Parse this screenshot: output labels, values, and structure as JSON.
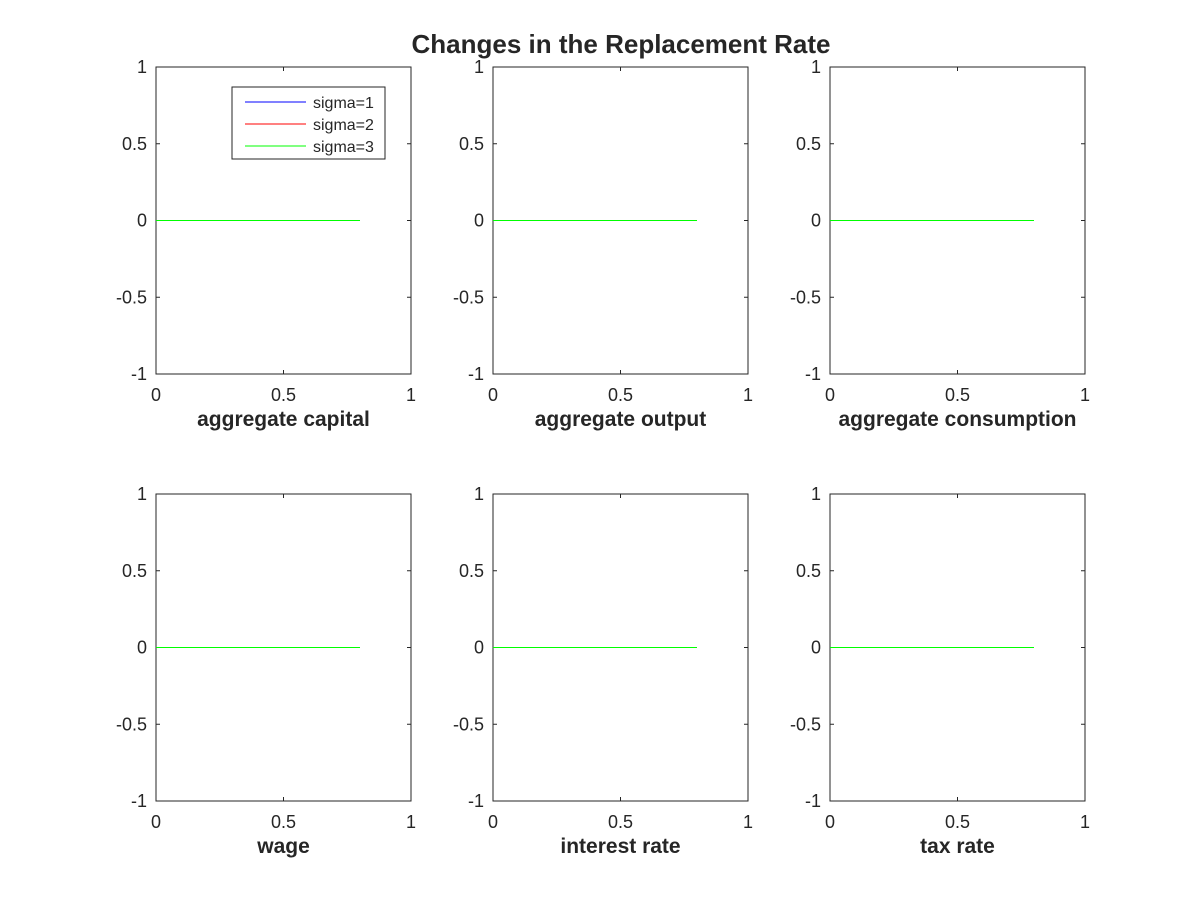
{
  "chart_data": {
    "title": "Changes in the Replacement Rate",
    "type": "line",
    "grid": false,
    "legend_placement": "top-right",
    "series": [
      {
        "name": "sigma=1",
        "color": "#0000ff"
      },
      {
        "name": "sigma=2",
        "color": "#ff0000"
      },
      {
        "name": "sigma=3",
        "color": "#00ff00"
      }
    ],
    "subplots": [
      {
        "xlabel": "aggregate capital",
        "xlim": [
          0,
          1
        ],
        "ylim": [
          -1,
          1
        ],
        "xticks": [
          "0",
          "0.5",
          "1"
        ],
        "yticks": [
          "1",
          "0.5",
          "0",
          "-0.5",
          "-1"
        ],
        "x": [
          0,
          0.8
        ],
        "values": [
          [
            0,
            0
          ],
          [
            0,
            0
          ],
          [
            0,
            0
          ]
        ],
        "legend": true
      },
      {
        "xlabel": "aggregate output",
        "xlim": [
          0,
          1
        ],
        "ylim": [
          -1,
          1
        ],
        "xticks": [
          "0",
          "0.5",
          "1"
        ],
        "yticks": [
          "1",
          "0.5",
          "0",
          "-0.5",
          "-1"
        ],
        "x": [
          0,
          0.8
        ],
        "values": [
          [
            0,
            0
          ],
          [
            0,
            0
          ],
          [
            0,
            0
          ]
        ],
        "legend": false
      },
      {
        "xlabel": "aggregate consumption",
        "xlim": [
          0,
          1
        ],
        "ylim": [
          -1,
          1
        ],
        "xticks": [
          "0",
          "0.5",
          "1"
        ],
        "yticks": [
          "1",
          "0.5",
          "0",
          "-0.5",
          "-1"
        ],
        "x": [
          0,
          0.8
        ],
        "values": [
          [
            0,
            0
          ],
          [
            0,
            0
          ],
          [
            0,
            0
          ]
        ],
        "legend": false
      },
      {
        "xlabel": "wage",
        "xlim": [
          0,
          1
        ],
        "ylim": [
          -1,
          1
        ],
        "xticks": [
          "0",
          "0.5",
          "1"
        ],
        "yticks": [
          "1",
          "0.5",
          "0",
          "-0.5",
          "-1"
        ],
        "x": [
          0,
          0.8
        ],
        "values": [
          [
            0,
            0
          ],
          [
            0,
            0
          ],
          [
            0,
            0
          ]
        ],
        "legend": false
      },
      {
        "xlabel": "interest rate",
        "xlim": [
          0,
          1
        ],
        "ylim": [
          -1,
          1
        ],
        "xticks": [
          "0",
          "0.5",
          "1"
        ],
        "yticks": [
          "1",
          "0.5",
          "0",
          "-0.5",
          "-1"
        ],
        "x": [
          0,
          0.8
        ],
        "values": [
          [
            0,
            0
          ],
          [
            0,
            0
          ],
          [
            0,
            0
          ]
        ],
        "legend": false
      },
      {
        "xlabel": "tax rate",
        "xlim": [
          0,
          1
        ],
        "ylim": [
          -1,
          1
        ],
        "xticks": [
          "0",
          "0.5",
          "1"
        ],
        "yticks": [
          "1",
          "0.5",
          "0",
          "-0.5",
          "-1"
        ],
        "x": [
          0,
          0.8
        ],
        "values": [
          [
            0,
            0
          ],
          [
            0,
            0
          ],
          [
            0,
            0
          ]
        ],
        "legend": false
      }
    ]
  }
}
